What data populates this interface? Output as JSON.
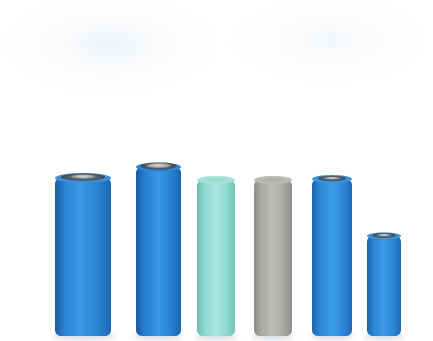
{
  "scene": {
    "background_color": "#ffffff",
    "cells": [
      {
        "icon": "battery-cell-icon",
        "body_color": "#2a84d2"
      },
      {
        "icon": "battery-cell-icon",
        "body_color": "#2581d0"
      },
      {
        "icon": "battery-cell-icon",
        "body_color": "#8fd8cf"
      },
      {
        "icon": "battery-cell-icon",
        "body_color": "#a9aaa6"
      },
      {
        "icon": "battery-cell-icon",
        "body_color": "#2b88d5"
      },
      {
        "icon": "battery-cell-icon",
        "body_color": "#2a86d3"
      }
    ]
  }
}
